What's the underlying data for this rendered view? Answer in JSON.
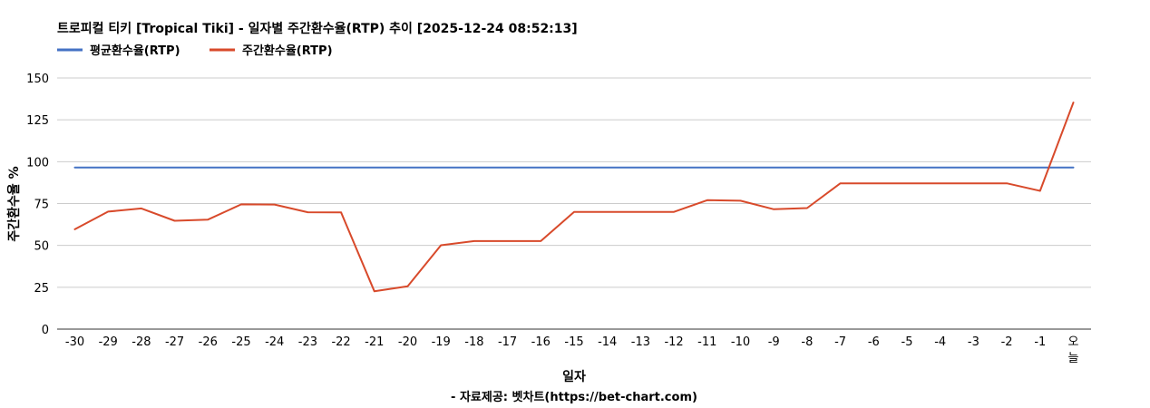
{
  "chart_data": {
    "type": "line",
    "title": "트로피컬 티키 [Tropical Tiki] - 일자별 주간환수율(RTP) 추이 [2025-12-24 08:52:13]",
    "xlabel": "일자",
    "ylabel": "주간환수율 %",
    "credit": "- 자료제공: 벳차트(https://bet-chart.com)",
    "ylim": [
      0,
      150
    ],
    "yticks": [
      "0",
      "25",
      "50",
      "75",
      "100",
      "125",
      "150"
    ],
    "grid": true,
    "legend_position": "top-left",
    "categories": [
      "-30",
      "-29",
      "-28",
      "-27",
      "-26",
      "-25",
      "-24",
      "-23",
      "-22",
      "-21",
      "-20",
      "-19",
      "-18",
      "-17",
      "-16",
      "-15",
      "-14",
      "-13",
      "-12",
      "-11",
      "-10",
      "-9",
      "-8",
      "-7",
      "-6",
      "-5",
      "-4",
      "-3",
      "-2",
      "-1",
      "오늘"
    ],
    "series": [
      {
        "name": "평균환수율(RTP)",
        "color": "#4472c4",
        "values": [
          96.5,
          96.5,
          96.5,
          96.5,
          96.5,
          96.5,
          96.5,
          96.5,
          96.5,
          96.5,
          96.5,
          96.5,
          96.5,
          96.5,
          96.5,
          96.5,
          96.5,
          96.5,
          96.5,
          96.5,
          96.5,
          96.5,
          96.5,
          96.5,
          96.5,
          96.5,
          96.5,
          96.5,
          96.5,
          96.5,
          96.5
        ]
      },
      {
        "name": "주간환수율(RTP)",
        "color": "#d84a2b",
        "values": [
          59.6,
          70.2,
          72.1,
          64.7,
          65.4,
          74.5,
          74.4,
          69.8,
          69.7,
          22.6,
          25.6,
          50.1,
          52.6,
          52.6,
          52.6,
          70.0,
          70.0,
          70.0,
          70.0,
          77.0,
          76.7,
          71.6,
          72.3,
          87.1,
          87.1,
          87.1,
          87.1,
          87.1,
          87.1,
          82.6,
          135.3
        ]
      }
    ]
  }
}
